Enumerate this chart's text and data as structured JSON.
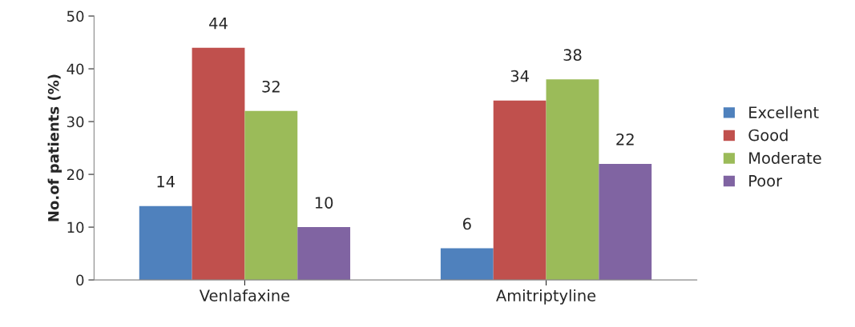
{
  "chart_data": {
    "type": "bar",
    "ylabel": "No.of patients (%)",
    "categories": [
      "Venlafaxine",
      "Amitriptyline"
    ],
    "series": [
      {
        "name": "Excellent",
        "color": "#4f81bd",
        "values": [
          14,
          6
        ]
      },
      {
        "name": "Good",
        "color": "#c0504d",
        "values": [
          44,
          34
        ]
      },
      {
        "name": "Moderate",
        "color": "#9bbb59",
        "values": [
          32,
          38
        ]
      },
      {
        "name": "Poor",
        "color": "#8064a2",
        "values": [
          10,
          22
        ]
      }
    ],
    "ylim": [
      0,
      50
    ],
    "yticks": [
      0,
      10,
      20,
      30,
      40,
      50
    ],
    "grid": false,
    "legend": "right",
    "data_labels": true
  }
}
